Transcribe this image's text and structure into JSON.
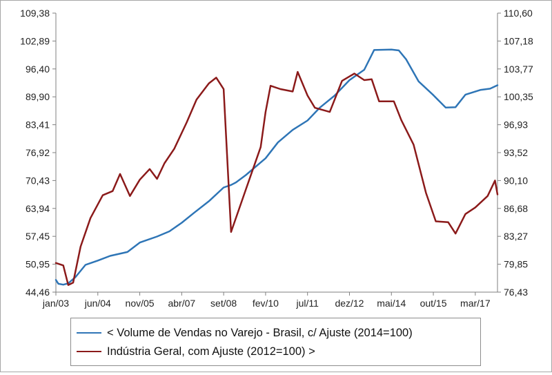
{
  "colors": {
    "series_volume": "#2e75b6",
    "series_industria": "#8b1a1a",
    "axis": "#7f7f7f"
  },
  "chart_data": {
    "type": "line",
    "title": "",
    "x_tick_labels": [
      "jan/03",
      "jun/04",
      "nov/05",
      "abr/07",
      "set/08",
      "fev/10",
      "jul/11",
      "dez/12",
      "mai/14",
      "out/15",
      "mar/17"
    ],
    "x_ticks": [
      "2003-01",
      "2004-06",
      "2005-11",
      "2007-04",
      "2008-09",
      "2010-02",
      "2011-07",
      "2012-12",
      "2014-05",
      "2015-10",
      "2017-03"
    ],
    "x_range": [
      "2003-01",
      "2017-12"
    ],
    "y_left": {
      "ticks": [
        "44,46",
        "50,95",
        "57,45",
        "63,94",
        "70,43",
        "76,92",
        "83,41",
        "89,90",
        "96,40",
        "102,89",
        "109,38"
      ],
      "range": [
        44.46,
        109.38
      ]
    },
    "y_right": {
      "ticks": [
        "76,43",
        "79,85",
        "83,27",
        "86,68",
        "90,10",
        "93,52",
        "96,93",
        "100,35",
        "103,77",
        "107,18",
        "110,60"
      ],
      "range": [
        76.43,
        110.6
      ]
    },
    "grid": false,
    "legend_position": "bottom",
    "series": [
      {
        "name": "< Volume de Vendas no Varejo - Brasil, c/ Ajuste (2014=100)",
        "axis": "left",
        "points": [
          [
            "2003-01",
            47.3
          ],
          [
            "2003-02",
            46.4
          ],
          [
            "2003-04",
            46.2
          ],
          [
            "2003-06",
            46.5
          ],
          [
            "2003-09",
            48.0
          ],
          [
            "2004-01",
            50.8
          ],
          [
            "2004-06",
            51.8
          ],
          [
            "2004-11",
            52.9
          ],
          [
            "2005-06",
            53.8
          ],
          [
            "2005-11",
            56.0
          ],
          [
            "2006-06",
            57.4
          ],
          [
            "2006-11",
            58.6
          ],
          [
            "2007-04",
            60.6
          ],
          [
            "2007-09",
            62.9
          ],
          [
            "2008-03",
            65.6
          ],
          [
            "2008-09",
            68.8
          ],
          [
            "2008-12",
            69.4
          ],
          [
            "2009-02",
            70.0
          ],
          [
            "2009-06",
            71.7
          ],
          [
            "2010-02",
            75.6
          ],
          [
            "2010-07",
            79.3
          ],
          [
            "2011-01",
            82.2
          ],
          [
            "2011-07",
            84.4
          ],
          [
            "2011-12",
            87.4
          ],
          [
            "2012-06",
            90.2
          ],
          [
            "2012-12",
            93.8
          ],
          [
            "2013-06",
            96.2
          ],
          [
            "2013-10",
            100.8
          ],
          [
            "2014-05",
            100.9
          ],
          [
            "2014-08",
            100.7
          ],
          [
            "2014-11",
            98.6
          ],
          [
            "2015-04",
            93.5
          ],
          [
            "2015-10",
            90.3
          ],
          [
            "2016-03",
            87.4
          ],
          [
            "2016-07",
            87.5
          ],
          [
            "2016-11",
            90.4
          ],
          [
            "2017-05",
            91.5
          ],
          [
            "2017-09",
            91.8
          ],
          [
            "2017-12",
            92.6
          ]
        ]
      },
      {
        "name": "Indústria Geral, com Ajuste (2012=100) >",
        "axis": "right",
        "points": [
          [
            "2003-01",
            80.0
          ],
          [
            "2003-04",
            79.7
          ],
          [
            "2003-06",
            77.3
          ],
          [
            "2003-08",
            77.6
          ],
          [
            "2003-11",
            82.0
          ],
          [
            "2004-03",
            85.5
          ],
          [
            "2004-08",
            88.3
          ],
          [
            "2004-12",
            88.8
          ],
          [
            "2005-03",
            90.9
          ],
          [
            "2005-07",
            88.2
          ],
          [
            "2005-11",
            90.2
          ],
          [
            "2006-03",
            91.5
          ],
          [
            "2006-06",
            90.3
          ],
          [
            "2006-09",
            92.2
          ],
          [
            "2007-01",
            94.0
          ],
          [
            "2007-06",
            97.2
          ],
          [
            "2007-10",
            100.0
          ],
          [
            "2008-03",
            102.0
          ],
          [
            "2008-06",
            102.7
          ],
          [
            "2008-09",
            101.3
          ],
          [
            "2008-12",
            83.8
          ],
          [
            "2009-06",
            89.0
          ],
          [
            "2009-12",
            94.2
          ],
          [
            "2010-02",
            98.5
          ],
          [
            "2010-04",
            101.7
          ],
          [
            "2010-08",
            101.3
          ],
          [
            "2011-01",
            101.0
          ],
          [
            "2011-03",
            103.4
          ],
          [
            "2011-07",
            100.5
          ],
          [
            "2011-10",
            99.0
          ],
          [
            "2012-04",
            98.5
          ],
          [
            "2012-09",
            102.3
          ],
          [
            "2013-02",
            103.2
          ],
          [
            "2013-06",
            102.4
          ],
          [
            "2013-09",
            102.5
          ],
          [
            "2013-12",
            99.8
          ],
          [
            "2014-06",
            99.8
          ],
          [
            "2014-09",
            97.5
          ],
          [
            "2015-02",
            94.5
          ],
          [
            "2015-07",
            88.6
          ],
          [
            "2015-11",
            85.1
          ],
          [
            "2016-04",
            85.0
          ],
          [
            "2016-07",
            83.6
          ],
          [
            "2016-11",
            86.0
          ],
          [
            "2017-03",
            86.8
          ],
          [
            "2017-08",
            88.2
          ],
          [
            "2017-11",
            90.1
          ],
          [
            "2017-12",
            88.4
          ]
        ]
      }
    ]
  }
}
